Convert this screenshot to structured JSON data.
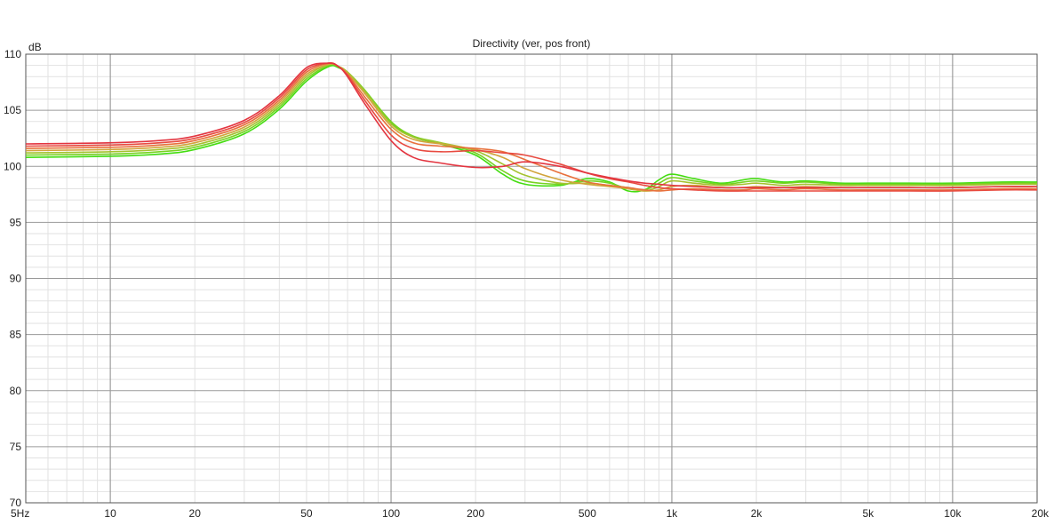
{
  "chart_data": {
    "type": "line",
    "title": "Directivity (ver, pos front)",
    "ylabel": "dB",
    "xlabel": "",
    "x_scale": "log",
    "xlim": [
      5,
      20000
    ],
    "ylim": [
      70,
      110
    ],
    "grid": true,
    "legend": "none",
    "y_ticks": [
      110,
      105,
      100,
      95,
      90,
      85,
      80,
      75,
      70
    ],
    "x_ticks": [
      {
        "value": 5,
        "label": "5Hz"
      },
      {
        "value": 10,
        "label": "10"
      },
      {
        "value": 20,
        "label": "20"
      },
      {
        "value": 50,
        "label": "50"
      },
      {
        "value": 100,
        "label": "100"
      },
      {
        "value": 200,
        "label": "200"
      },
      {
        "value": 500,
        "label": "500"
      },
      {
        "value": 1000,
        "label": "1k"
      },
      {
        "value": 2000,
        "label": "2k"
      },
      {
        "value": 5000,
        "label": "5k"
      },
      {
        "value": 10000,
        "label": "10k"
      },
      {
        "value": 20000,
        "label": "20k"
      }
    ],
    "series": [
      {
        "color": "#44dd11",
        "x": [
          5,
          10,
          15,
          20,
          30,
          40,
          50,
          60,
          65,
          70,
          80,
          100,
          120,
          150,
          200,
          250,
          300,
          400,
          500,
          600,
          700,
          800,
          900,
          1000,
          1200,
          1500,
          1800,
          2000,
          2500,
          3000,
          4000,
          5000,
          7000,
          10000,
          15000,
          20000
        ],
        "y": [
          100.8,
          100.9,
          101.1,
          101.5,
          102.9,
          105.1,
          107.6,
          108.9,
          108.8,
          108.3,
          106.8,
          103.9,
          102.6,
          102.0,
          101.0,
          99.3,
          98.4,
          98.3,
          98.9,
          98.6,
          97.8,
          97.9,
          98.8,
          99.3,
          98.9,
          98.5,
          98.8,
          98.9,
          98.6,
          98.7,
          98.5,
          98.5,
          98.5,
          98.5,
          98.6,
          98.6
        ]
      },
      {
        "color": "#77d322",
        "x": [
          5,
          10,
          15,
          20,
          30,
          40,
          50,
          60,
          65,
          70,
          80,
          100,
          120,
          150,
          200,
          250,
          300,
          400,
          500,
          600,
          700,
          800,
          900,
          1000,
          1200,
          1500,
          1800,
          2000,
          2500,
          3000,
          4000,
          5000,
          7000,
          10000,
          15000,
          20000
        ],
        "y": [
          101.0,
          101.1,
          101.3,
          101.7,
          103.1,
          105.3,
          107.8,
          109.0,
          108.9,
          108.4,
          106.9,
          104.0,
          102.7,
          102.1,
          101.2,
          99.6,
          98.7,
          98.4,
          98.7,
          98.5,
          98.0,
          97.9,
          98.5,
          99.0,
          98.7,
          98.4,
          98.6,
          98.7,
          98.5,
          98.6,
          98.4,
          98.4,
          98.4,
          98.4,
          98.5,
          98.5
        ]
      },
      {
        "color": "#a5c230",
        "x": [
          5,
          10,
          15,
          20,
          30,
          40,
          50,
          60,
          65,
          70,
          80,
          100,
          120,
          150,
          200,
          250,
          300,
          400,
          500,
          600,
          700,
          800,
          900,
          1000,
          1200,
          1500,
          1800,
          2000,
          2500,
          3000,
          4000,
          5000,
          7000,
          10000,
          15000,
          20000
        ],
        "y": [
          101.2,
          101.3,
          101.5,
          101.9,
          103.3,
          105.5,
          108.0,
          109.1,
          108.9,
          108.4,
          106.8,
          103.8,
          102.6,
          102.1,
          101.4,
          100.2,
          99.2,
          98.5,
          98.5,
          98.3,
          98.1,
          97.8,
          98.2,
          98.7,
          98.5,
          98.3,
          98.4,
          98.5,
          98.3,
          98.4,
          98.3,
          98.3,
          98.3,
          98.3,
          98.4,
          98.4
        ]
      },
      {
        "color": "#d2a43c",
        "x": [
          5,
          10,
          15,
          20,
          30,
          40,
          50,
          60,
          65,
          70,
          80,
          100,
          120,
          150,
          200,
          250,
          300,
          400,
          500,
          600,
          700,
          800,
          900,
          1000,
          1200,
          1500,
          1800,
          2000,
          2500,
          3000,
          4000,
          5000,
          7000,
          10000,
          15000,
          20000
        ],
        "y": [
          101.4,
          101.5,
          101.7,
          102.1,
          103.5,
          105.7,
          108.2,
          109.1,
          108.9,
          108.3,
          106.6,
          103.6,
          102.4,
          102.0,
          101.5,
          100.8,
          99.8,
          98.8,
          98.4,
          98.2,
          98.0,
          97.8,
          97.9,
          98.2,
          98.3,
          98.1,
          98.1,
          98.2,
          98.1,
          98.2,
          98.1,
          98.1,
          98.1,
          98.1,
          98.2,
          98.2
        ]
      },
      {
        "color": "#e8703c",
        "x": [
          5,
          10,
          15,
          20,
          30,
          40,
          50,
          60,
          65,
          70,
          80,
          100,
          120,
          150,
          200,
          250,
          300,
          400,
          500,
          600,
          700,
          800,
          900,
          1000,
          1200,
          1500,
          1800,
          2000,
          2500,
          3000,
          4000,
          5000,
          7000,
          10000,
          15000,
          20000
        ],
        "y": [
          101.6,
          101.7,
          101.9,
          102.3,
          103.7,
          105.9,
          108.4,
          109.2,
          108.9,
          108.2,
          106.3,
          103.3,
          102.1,
          101.8,
          101.6,
          101.3,
          100.6,
          99.4,
          98.6,
          98.3,
          98.1,
          97.9,
          97.8,
          97.9,
          98.0,
          97.9,
          97.9,
          98.0,
          97.9,
          98.0,
          97.9,
          97.9,
          97.9,
          97.9,
          98.0,
          98.0
        ]
      },
      {
        "color": "#e84a40",
        "x": [
          5,
          10,
          15,
          20,
          30,
          40,
          50,
          60,
          65,
          70,
          80,
          100,
          120,
          150,
          200,
          250,
          300,
          400,
          500,
          600,
          700,
          800,
          900,
          1000,
          1200,
          1500,
          1800,
          2000,
          2500,
          3000,
          4000,
          5000,
          7000,
          10000,
          15000,
          20000
        ],
        "y": [
          101.8,
          101.9,
          102.1,
          102.5,
          103.9,
          106.1,
          108.6,
          109.2,
          108.9,
          108.1,
          106.0,
          102.8,
          101.6,
          101.3,
          101.4,
          101.2,
          101.0,
          100.2,
          99.4,
          98.9,
          98.6,
          98.3,
          98.1,
          98.0,
          97.9,
          97.8,
          97.8,
          97.8,
          97.8,
          97.8,
          97.8,
          97.8,
          97.8,
          97.8,
          97.9,
          97.9
        ]
      },
      {
        "color": "#e33540",
        "x": [
          5,
          10,
          15,
          20,
          30,
          40,
          50,
          60,
          65,
          70,
          80,
          100,
          120,
          150,
          200,
          250,
          300,
          400,
          500,
          600,
          700,
          800,
          900,
          1000,
          1200,
          1500,
          1800,
          2000,
          2500,
          3000,
          4000,
          5000,
          7000,
          10000,
          15000,
          20000
        ],
        "y": [
          102.0,
          102.1,
          102.3,
          102.7,
          104.1,
          106.3,
          108.8,
          109.2,
          108.9,
          108.0,
          105.7,
          102.3,
          100.8,
          100.3,
          99.9,
          100.0,
          100.4,
          100.0,
          99.4,
          99.0,
          98.7,
          98.5,
          98.4,
          98.3,
          98.2,
          98.1,
          98.1,
          98.1,
          98.1,
          98.1,
          98.1,
          98.1,
          98.1,
          98.1,
          98.2,
          98.2
        ]
      }
    ]
  }
}
